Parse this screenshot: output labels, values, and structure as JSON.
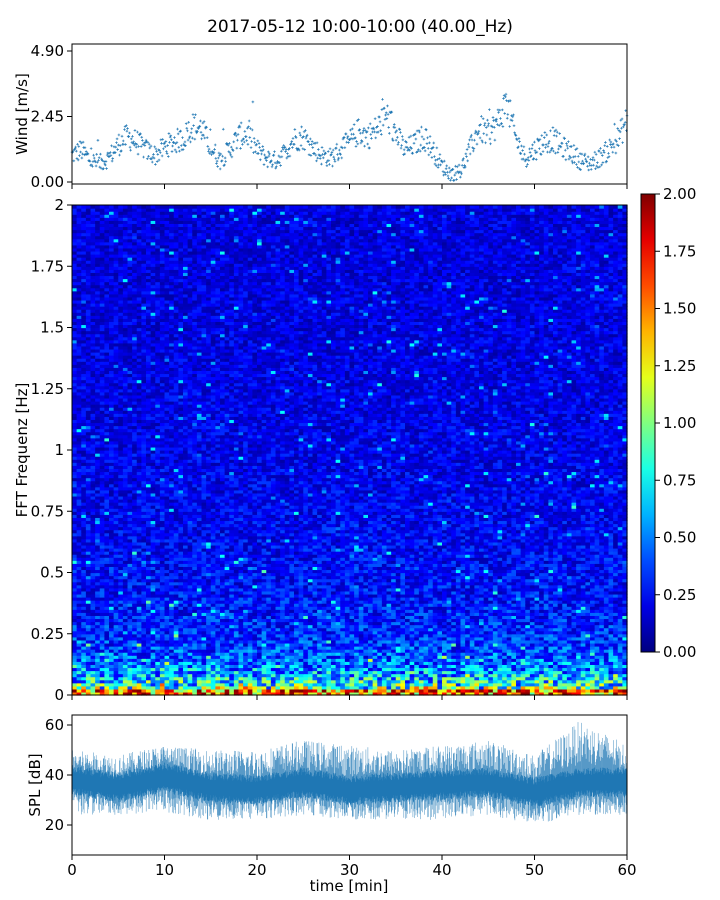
{
  "figure": {
    "title": "2017-05-12 10:00-10:00 (40.00_Hz)"
  },
  "chart_data": [
    {
      "type": "scatter",
      "panel": "wind",
      "ylabel": "Wind [m/s]",
      "ylim": [
        0.0,
        4.9
      ],
      "yticks": [
        "0.00",
        "2.45",
        "4.90"
      ],
      "xlim": [
        0,
        60
      ],
      "grid": false,
      "color": "#1f77b4",
      "marker": "+",
      "profile": {
        "t": [
          0,
          1,
          2,
          3,
          4,
          5,
          6,
          7,
          8,
          9,
          10,
          11,
          12,
          13,
          14,
          15,
          16,
          17,
          18,
          19,
          20,
          21,
          22,
          23,
          24,
          25,
          26,
          27,
          28,
          29,
          30,
          31,
          32,
          33,
          34,
          35,
          36,
          37,
          38,
          39,
          40,
          41,
          42,
          43,
          44,
          45,
          46,
          47,
          48,
          49,
          50,
          51,
          52,
          53,
          54,
          55,
          56,
          57,
          58,
          59,
          60
        ],
        "v": [
          1.0,
          1.2,
          0.8,
          0.7,
          0.9,
          1.4,
          1.7,
          1.5,
          1.2,
          1.0,
          1.3,
          1.5,
          1.6,
          2.1,
          2.0,
          1.3,
          0.8,
          1.2,
          1.7,
          1.8,
          1.2,
          0.9,
          0.8,
          1.1,
          1.6,
          1.7,
          1.3,
          1.0,
          0.9,
          1.2,
          1.5,
          1.9,
          1.7,
          2.0,
          2.5,
          1.8,
          1.2,
          1.4,
          1.7,
          1.2,
          0.6,
          0.3,
          0.4,
          1.2,
          2.0,
          1.8,
          2.2,
          3.0,
          1.6,
          0.9,
          1.2,
          1.5,
          1.6,
          1.3,
          1.1,
          0.8,
          0.7,
          0.9,
          1.2,
          1.6,
          2.3
        ]
      }
    },
    {
      "type": "heatmap",
      "panel": "spectrogram",
      "ylabel": "FFT Frequenz [Hz]",
      "ylim": [
        0,
        2
      ],
      "yticks": [
        "0",
        "0.25",
        "0.5",
        "0.75",
        "1",
        "1.25",
        "1.5",
        "1.75",
        "2"
      ],
      "xlim": [
        0,
        60
      ],
      "colormap": "jet",
      "colorbar": {
        "range": [
          0.0,
          2.0
        ],
        "ticks": [
          "0.00",
          "0.25",
          "0.50",
          "0.75",
          "1.00",
          "1.25",
          "1.50",
          "1.75",
          "2.00"
        ]
      },
      "time_bins": 120,
      "freq_bins": 160
    },
    {
      "type": "area",
      "panel": "spl",
      "ylabel": "SPL [dB]",
      "xlabel": "time [min]",
      "xlim": [
        0,
        60
      ],
      "ylim": [
        8,
        64
      ],
      "yticks": [
        "20",
        "40",
        "60"
      ],
      "xticks": [
        "0",
        "10",
        "20",
        "30",
        "40",
        "50",
        "60"
      ],
      "color": "#1f77b4",
      "profile": {
        "t": [
          0,
          5,
          10,
          15,
          20,
          25,
          30,
          35,
          40,
          45,
          50,
          55,
          60
        ],
        "mean": [
          38,
          35,
          39,
          35,
          34,
          37,
          34,
          35,
          36,
          37,
          33,
          37,
          37
        ],
        "band_low": [
          24,
          24,
          25,
          22,
          22,
          24,
          22,
          22,
          22,
          24,
          20,
          24,
          24
        ],
        "band_high": [
          50,
          48,
          52,
          50,
          50,
          54,
          52,
          50,
          52,
          54,
          48,
          62,
          52
        ]
      }
    }
  ]
}
